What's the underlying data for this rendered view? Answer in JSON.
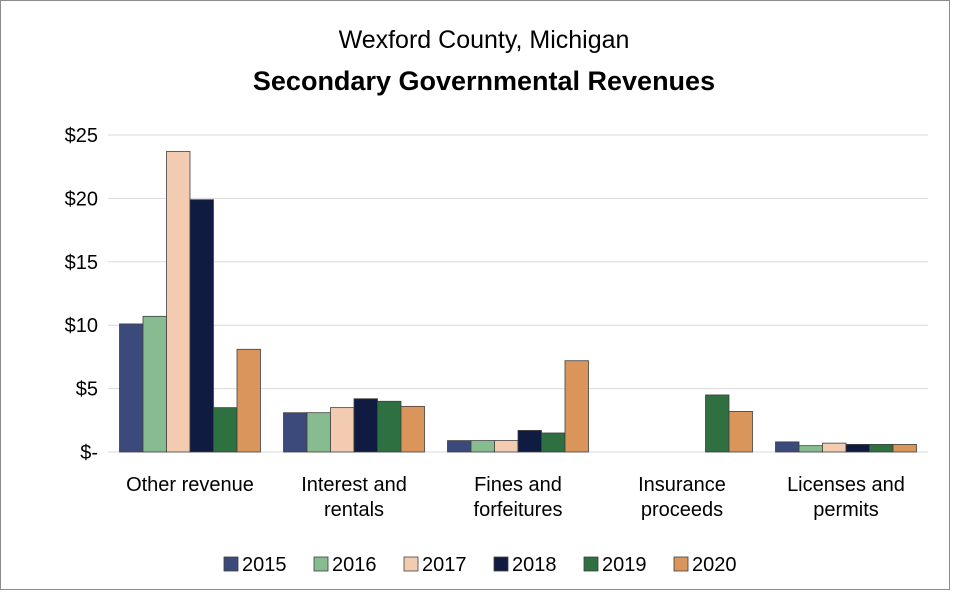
{
  "chart_data": {
    "type": "bar",
    "subtitle": "Wexford County, Michigan",
    "title": "Secondary Governmental Revenues",
    "categories": [
      "Other revenue",
      "Interest and rentals",
      "Fines and forfeitures",
      "Insurance proceeds",
      "Licenses and permits"
    ],
    "series": [
      {
        "name": "2015",
        "color": "#3b4a7a",
        "values": [
          10.1,
          3.1,
          0.9,
          0,
          0.8
        ]
      },
      {
        "name": "2016",
        "color": "#86bc8f",
        "values": [
          10.7,
          3.1,
          0.9,
          0,
          0.5
        ]
      },
      {
        "name": "2017",
        "color": "#f2cbb0",
        "values": [
          23.7,
          3.5,
          0.9,
          0,
          0.7
        ]
      },
      {
        "name": "2018",
        "color": "#0f1b40",
        "values": [
          19.9,
          4.2,
          1.7,
          0,
          0.6
        ]
      },
      {
        "name": "2019",
        "color": "#2f7040",
        "values": [
          3.5,
          4.0,
          1.5,
          4.5,
          0.6
        ]
      },
      {
        "name": "2020",
        "color": "#d9955a",
        "values": [
          8.1,
          3.6,
          7.2,
          3.2,
          0.6
        ]
      }
    ],
    "ylim": [
      0,
      25
    ],
    "yticks": [
      {
        "value": 0,
        "label": "$-"
      },
      {
        "value": 5,
        "label": "$5"
      },
      {
        "value": 10,
        "label": "$10"
      },
      {
        "value": 15,
        "label": "$15"
      },
      {
        "value": 20,
        "label": "$20"
      },
      {
        "value": 25,
        "label": "$25"
      }
    ],
    "grid": true,
    "legend": "bottom"
  }
}
